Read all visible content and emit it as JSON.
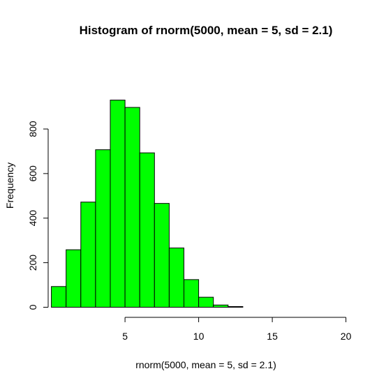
{
  "chart_data": {
    "type": "bar",
    "title": "Histogram of rnorm(5000, mean = 5, sd = 2.1)",
    "xlabel": "rnorm(5000, mean = 5, sd = 2.1)",
    "ylabel": "Frequency",
    "bin_edges": [
      0,
      1,
      2,
      3,
      4,
      5,
      6,
      7,
      8,
      9,
      10,
      11,
      12,
      13
    ],
    "values": [
      93,
      258,
      472,
      707,
      930,
      897,
      693,
      466,
      266,
      124,
      45,
      10,
      3
    ],
    "xlim": [
      0,
      20
    ],
    "ylim": [
      0,
      930
    ],
    "x_ticks": [
      "5",
      "10",
      "15",
      "20"
    ],
    "y_ticks": [
      "0",
      "200",
      "400",
      "600",
      "800"
    ],
    "bar_color": "#00ff00",
    "grid": false,
    "legend": "none"
  }
}
